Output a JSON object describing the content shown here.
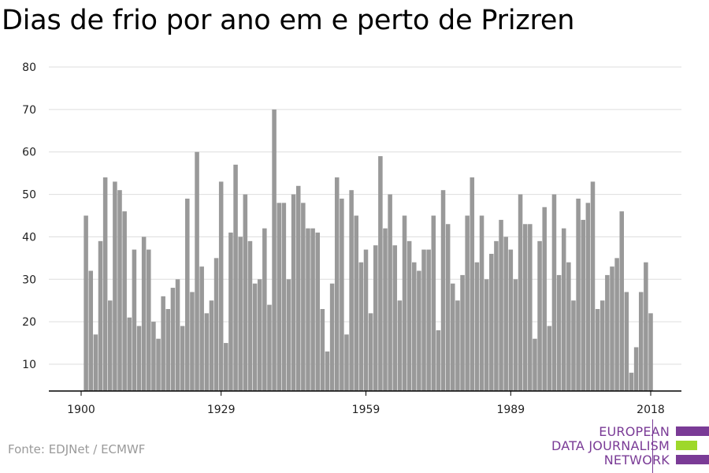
{
  "title": "Dias de frio por ano em e perto de Prizren",
  "source": "Fonte: EDJNet / ECMWF",
  "logo": {
    "lines": [
      "EUROPEAN",
      "DATA JOURNALISM",
      "NETWORK"
    ],
    "colors": {
      "text": "#7a3b96",
      "purple": "#7a3b96",
      "green": "#9ed82a"
    }
  },
  "colors": {
    "bar": "#999999",
    "grid": "#dddddd",
    "axis": "#000000"
  },
  "chart_data": {
    "type": "bar",
    "title": "Dias de frio por ano em e perto de Prizren",
    "xlabel": "",
    "ylabel": "",
    "ylim": [
      3.5,
      82
    ],
    "yticks": [
      10,
      20,
      30,
      40,
      50,
      60,
      70,
      80
    ],
    "xticks": [
      1900,
      1929,
      1959,
      1989,
      2018
    ],
    "grid": true,
    "x": [
      1901,
      1902,
      1903,
      1904,
      1905,
      1906,
      1907,
      1908,
      1909,
      1910,
      1911,
      1912,
      1913,
      1914,
      1915,
      1916,
      1917,
      1918,
      1919,
      1920,
      1921,
      1922,
      1923,
      1924,
      1925,
      1926,
      1927,
      1928,
      1929,
      1930,
      1931,
      1932,
      1933,
      1934,
      1935,
      1936,
      1937,
      1938,
      1939,
      1940,
      1941,
      1942,
      1943,
      1944,
      1945,
      1946,
      1947,
      1948,
      1949,
      1950,
      1951,
      1952,
      1953,
      1954,
      1955,
      1956,
      1957,
      1958,
      1959,
      1960,
      1961,
      1962,
      1963,
      1964,
      1965,
      1966,
      1967,
      1968,
      1969,
      1970,
      1971,
      1972,
      1973,
      1974,
      1975,
      1976,
      1977,
      1978,
      1979,
      1980,
      1981,
      1982,
      1983,
      1984,
      1985,
      1986,
      1987,
      1988,
      1989,
      1990,
      1991,
      1992,
      1993,
      1994,
      1995,
      1996,
      1997,
      1998,
      1999,
      2000,
      2001,
      2002,
      2003,
      2004,
      2005,
      2006,
      2007,
      2008,
      2009,
      2010,
      2011,
      2012,
      2013,
      2014,
      2015,
      2016,
      2017,
      2018
    ],
    "values": [
      45,
      32,
      17,
      39,
      54,
      25,
      53,
      51,
      46,
      21,
      37,
      19,
      40,
      37,
      20,
      16,
      26,
      23,
      28,
      30,
      19,
      49,
      27,
      60,
      33,
      22,
      25,
      35,
      53,
      15,
      41,
      57,
      40,
      50,
      39,
      29,
      30,
      42,
      24,
      70,
      48,
      48,
      30,
      50,
      52,
      48,
      42,
      42,
      41,
      23,
      13,
      29,
      54,
      49,
      17,
      51,
      45,
      34,
      37,
      22,
      38,
      59,
      42,
      50,
      38,
      25,
      45,
      39,
      34,
      32,
      37,
      37,
      45,
      18,
      51,
      43,
      29,
      25,
      31,
      45,
      54,
      34,
      45,
      30,
      36,
      39,
      44,
      40,
      37,
      30,
      50,
      43,
      43,
      16,
      39,
      47,
      19,
      50,
      31,
      42,
      34,
      25,
      49,
      44,
      48,
      53,
      23,
      25,
      31,
      33,
      35,
      46,
      27,
      8,
      14,
      27,
      34,
      22
    ]
  }
}
